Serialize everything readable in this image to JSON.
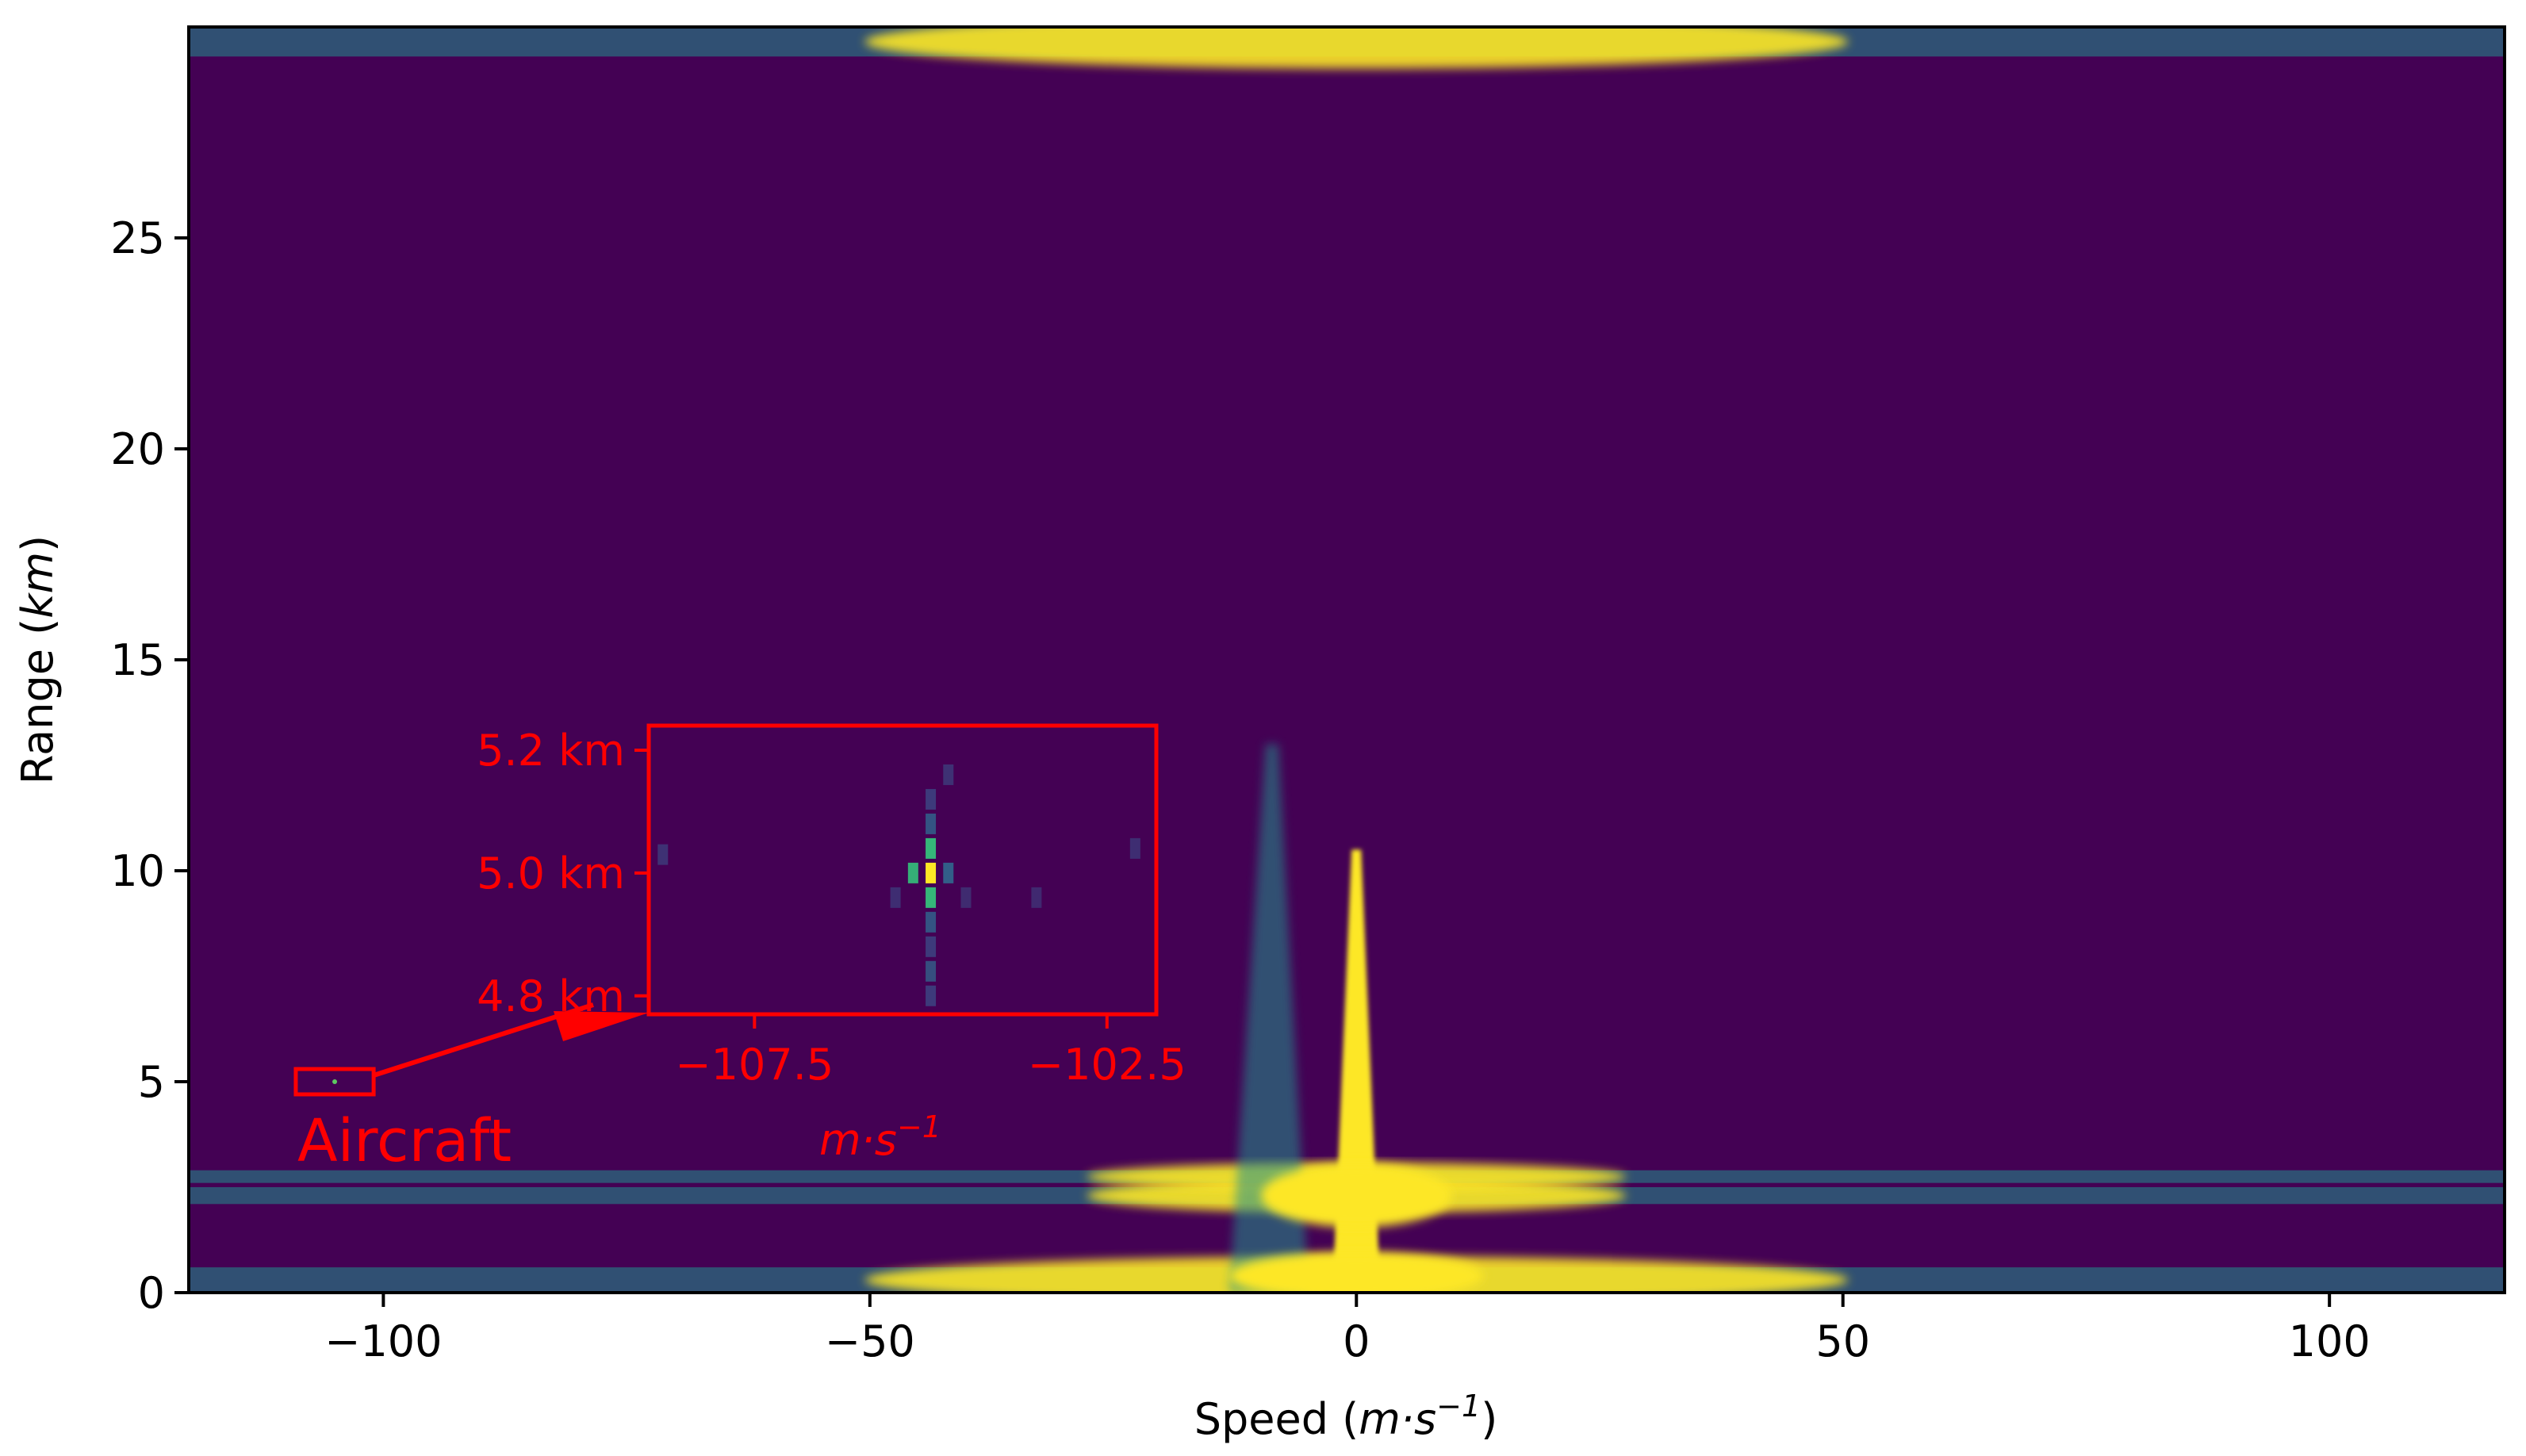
{
  "chart_data": {
    "type": "heatmap",
    "title": "",
    "xlabel": "Speed (m·s⁻¹)",
    "xlabel_main": "Speed ",
    "xlabel_unit": "m·s",
    "xlabel_unit_exp": "−1",
    "ylabel": "Range (km)",
    "ylabel_main": "Range ",
    "ylabel_unit": "km",
    "xlim": [
      -120,
      118
    ],
    "ylim": [
      0,
      30
    ],
    "xticks": [
      -100,
      -50,
      0,
      50,
      100
    ],
    "xtick_labels": [
      "−100",
      "−50",
      "0",
      "50",
      "100"
    ],
    "yticks": [
      0,
      5,
      10,
      15,
      20,
      25
    ],
    "ytick_labels": [
      "0",
      "5",
      "10",
      "15",
      "20",
      "25"
    ],
    "colormap": "viridis",
    "background_color": "#440154",
    "high_color": "#fde725",
    "mid_color": "#21918c",
    "features": [
      {
        "kind": "band",
        "ymin": 29.3,
        "ymax": 30,
        "xmin": -120,
        "xmax": 118
      },
      {
        "kind": "band",
        "ymin": 0,
        "ymax": 0.6,
        "xmin": -120,
        "xmax": 118
      },
      {
        "kind": "band",
        "ymin": 2.1,
        "ymax": 2.5,
        "xmin": -120,
        "xmax": 118
      },
      {
        "kind": "band",
        "ymin": 2.6,
        "ymax": 2.9,
        "xmin": -120,
        "xmax": 118
      },
      {
        "kind": "column",
        "x": 0,
        "ymin": 0,
        "ymax": 10.5
      },
      {
        "kind": "column",
        "x": -9,
        "ymin": 0,
        "ymax": 13
      }
    ],
    "annotations": {
      "target_label": "Aircraft",
      "target_box": {
        "x": [
          -109,
          -101
        ],
        "y": [
          4.7,
          5.3
        ]
      },
      "target_point": {
        "x": -105,
        "y": 5.0
      },
      "inset": {
        "xlim": [
          -109,
          -101.8
        ],
        "ylim": [
          4.77,
          5.24
        ],
        "xticks": [
          -107.5,
          -102.5
        ],
        "xtick_labels": [
          "−107.5",
          "−102.5"
        ],
        "yticks": [
          4.8,
          5.0,
          5.2
        ],
        "ytick_labels": [
          "4.8 km",
          "5.0 km",
          "5.2 km"
        ],
        "xlabel_main": "m·s",
        "xlabel_exp": "−1",
        "color": "#ff0000",
        "cells": [
          {
            "x": -105.0,
            "y": 5.0,
            "v": 1.0
          },
          {
            "x": -105.0,
            "y": 5.04,
            "v": 0.6
          },
          {
            "x": -105.0,
            "y": 4.96,
            "v": 0.6
          },
          {
            "x": -105.25,
            "y": 5.0,
            "v": 0.55
          },
          {
            "x": -104.75,
            "y": 5.0,
            "v": 0.5
          },
          {
            "x": -105.0,
            "y": 5.08,
            "v": 0.4
          },
          {
            "x": -105.0,
            "y": 4.92,
            "v": 0.4
          },
          {
            "x": -105.0,
            "y": 5.12,
            "v": 0.3
          },
          {
            "x": -105.0,
            "y": 4.88,
            "v": 0.3
          },
          {
            "x": -105.0,
            "y": 4.84,
            "v": 0.35
          },
          {
            "x": -105.0,
            "y": 4.8,
            "v": 0.3
          },
          {
            "x": -104.75,
            "y": 5.16,
            "v": 0.2
          },
          {
            "x": -105.5,
            "y": 4.96,
            "v": 0.15
          },
          {
            "x": -104.5,
            "y": 4.96,
            "v": 0.12
          },
          {
            "x": -108.8,
            "y": 5.03,
            "v": 0.2
          },
          {
            "x": -102.1,
            "y": 5.04,
            "v": 0.15
          },
          {
            "x": -103.5,
            "y": 4.96,
            "v": 0.1
          }
        ]
      }
    }
  }
}
